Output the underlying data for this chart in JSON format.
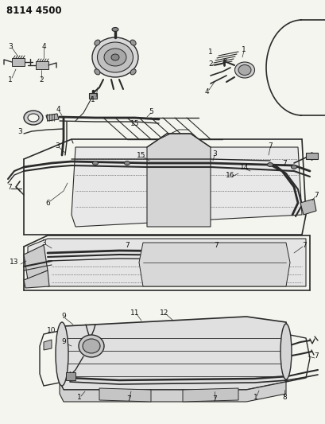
{
  "title": "8114 4500",
  "bg_color": "#f5f5f0",
  "line_color": "#2a2a2a",
  "text_color": "#111111",
  "figsize": [
    4.1,
    5.33
  ],
  "dpi": 100
}
